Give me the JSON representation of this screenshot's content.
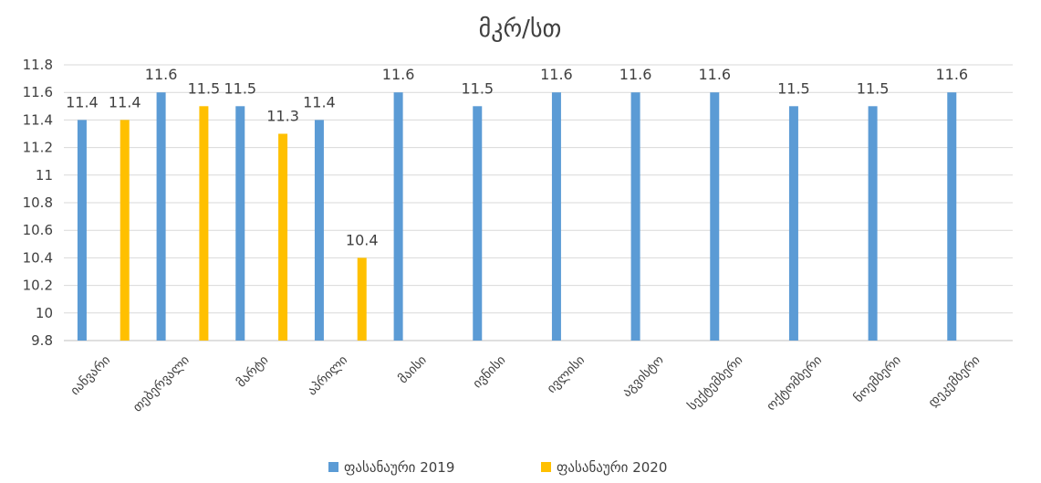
{
  "chart_data": {
    "type": "bar",
    "title": "მკრ/სთ",
    "xlabel": "",
    "ylabel": "",
    "ylim": [
      9.8,
      11.8
    ],
    "y_ticks": [
      "9.8",
      "10",
      "10.2",
      "10.4",
      "10.6",
      "10.8",
      "11",
      "11.2",
      "11.4",
      "11.6",
      "11.8"
    ],
    "y_tick_values": [
      9.8,
      10.0,
      10.2,
      10.4,
      10.6,
      10.8,
      11.0,
      11.2,
      11.4,
      11.6,
      11.8
    ],
    "grid": true,
    "legend_position": "bottom",
    "categories": [
      "იანვარი",
      "თებერვალი",
      "მარტი",
      "აპრილი",
      "მაისი",
      "ივნისი",
      "ივლისი",
      "აგვისტო",
      "სექტემბერი",
      "ოქტომბერი",
      "ნოემბერი",
      "დეკემბერი"
    ],
    "series": [
      {
        "name": "ფასანაური 2019",
        "color": "#5b9bd5",
        "values": [
          11.4,
          11.6,
          11.5,
          11.4,
          11.6,
          11.5,
          11.6,
          11.6,
          11.6,
          11.5,
          11.5,
          11.6
        ],
        "labels": [
          "11.4",
          "11.6",
          "11.5",
          "11.4",
          "11.6",
          "11.5",
          "11.6",
          "11.6",
          "11.6",
          "11.5",
          "11.5",
          "11.6"
        ]
      },
      {
        "name": "ფასანაური 2020",
        "color": "#ffc000",
        "values": [
          11.4,
          11.5,
          11.3,
          10.4,
          null,
          null,
          null,
          null,
          null,
          null,
          null,
          null
        ],
        "labels": [
          "11.4",
          "11.5",
          "11.3",
          "10.4",
          null,
          null,
          null,
          null,
          null,
          null,
          null,
          null
        ]
      }
    ]
  }
}
